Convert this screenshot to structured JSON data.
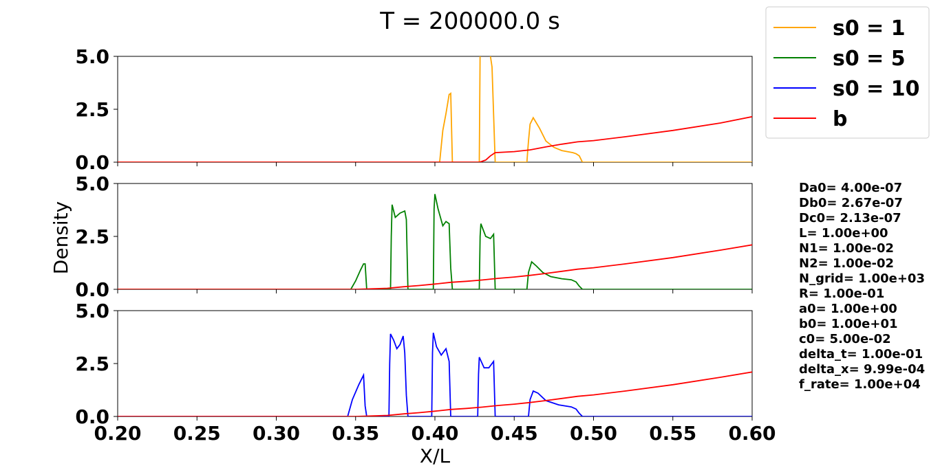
{
  "chart_data": {
    "type": "line",
    "title": "T = 200000.0 s",
    "xlabel": "X/L",
    "ylabel": "Density",
    "xlim": [
      0.2,
      0.6
    ],
    "xticks": [
      "0.20",
      "0.25",
      "0.30",
      "0.35",
      "0.40",
      "0.45",
      "0.50",
      "0.55",
      "0.60"
    ],
    "ylim": [
      0,
      5
    ],
    "yticks": [
      "0.0",
      "2.5",
      "5.0"
    ],
    "grid": false,
    "legend": {
      "placement": "top-right",
      "entries": [
        {
          "label": "s0 = 1",
          "color": "#ffa500"
        },
        {
          "label": "s0 = 5",
          "color": "#008000"
        },
        {
          "label": "s0 = 10",
          "color": "#0000ff"
        },
        {
          "label": "b",
          "color": "#ff0000"
        }
      ]
    },
    "b_curve": {
      "name": "b",
      "color": "#ff0000",
      "x": [
        0.2,
        0.3,
        0.35,
        0.37,
        0.38,
        0.39,
        0.4,
        0.41,
        0.42,
        0.43,
        0.44,
        0.45,
        0.46,
        0.47,
        0.48,
        0.49,
        0.5,
        0.52,
        0.55,
        0.58,
        0.6
      ],
      "y": [
        0,
        0,
        0,
        0.05,
        0.12,
        0.18,
        0.25,
        0.33,
        0.38,
        0.44,
        0.52,
        0.58,
        0.66,
        0.75,
        0.85,
        0.95,
        1.02,
        1.2,
        1.5,
        1.85,
        2.1
      ]
    },
    "subplots": [
      {
        "name": "s0 = 1",
        "color": "#ffa500",
        "x": [
          0.2,
          0.403,
          0.405,
          0.407,
          0.409,
          0.4095,
          0.41,
          0.411,
          0.428,
          0.4285,
          0.429,
          0.433,
          0.435,
          0.436,
          0.438,
          0.458,
          0.4585,
          0.459,
          0.46,
          0.462,
          0.466,
          0.47,
          0.475,
          0.48,
          0.487,
          0.489,
          0.491,
          0.493,
          0.6
        ],
        "y": [
          0,
          0,
          1.5,
          2.3,
          3.2,
          3.22,
          3.25,
          0,
          0,
          5.2,
          5.2,
          5.2,
          5.0,
          4.5,
          0,
          0,
          0.5,
          1.0,
          1.8,
          2.1,
          1.6,
          1.0,
          0.7,
          0.55,
          0.45,
          0.4,
          0.3,
          0,
          0
        ],
        "b_x": [
          0.2,
          0.428,
          0.429,
          0.432,
          0.435,
          0.438,
          0.45,
          0.46,
          0.47,
          0.48,
          0.49,
          0.5,
          0.52,
          0.55,
          0.58,
          0.6
        ],
        "b_y": [
          0,
          0,
          0.02,
          0.1,
          0.3,
          0.45,
          0.5,
          0.58,
          0.72,
          0.85,
          0.96,
          1.02,
          1.2,
          1.5,
          1.85,
          2.15
        ]
      },
      {
        "name": "s0 = 5",
        "color": "#008000",
        "x": [
          0.2,
          0.347,
          0.35,
          0.353,
          0.355,
          0.356,
          0.357,
          0.372,
          0.3725,
          0.373,
          0.375,
          0.378,
          0.381,
          0.382,
          0.383,
          0.399,
          0.3995,
          0.4,
          0.402,
          0.405,
          0.407,
          0.409,
          0.41,
          0.411,
          0.428,
          0.4285,
          0.429,
          0.432,
          0.435,
          0.437,
          0.438,
          0.458,
          0.459,
          0.461,
          0.464,
          0.468,
          0.473,
          0.48,
          0.486,
          0.489,
          0.491,
          0.493,
          0.6
        ],
        "y": [
          0,
          0,
          0.4,
          0.9,
          1.2,
          1.2,
          0,
          0,
          2.5,
          4.0,
          3.4,
          3.6,
          3.7,
          3.3,
          0,
          0,
          3.8,
          4.5,
          3.8,
          3.0,
          3.2,
          3.1,
          1.0,
          0,
          0,
          2.5,
          3.1,
          2.5,
          2.4,
          2.6,
          0,
          0,
          0.8,
          1.3,
          1.1,
          0.8,
          0.6,
          0.5,
          0.45,
          0.35,
          0.15,
          0,
          0
        ],
        "b_x": [
          0.2,
          0.3,
          0.35,
          0.37,
          0.38,
          0.39,
          0.4,
          0.41,
          0.42,
          0.43,
          0.44,
          0.45,
          0.46,
          0.47,
          0.48,
          0.49,
          0.5,
          0.52,
          0.55,
          0.58,
          0.6
        ],
        "b_y": [
          0,
          0,
          0,
          0.05,
          0.12,
          0.18,
          0.25,
          0.33,
          0.38,
          0.44,
          0.52,
          0.58,
          0.66,
          0.75,
          0.85,
          0.95,
          1.02,
          1.2,
          1.5,
          1.85,
          2.1
        ]
      },
      {
        "name": "s0 = 10",
        "color": "#0000ff",
        "x": [
          0.2,
          0.345,
          0.348,
          0.352,
          0.355,
          0.356,
          0.357,
          0.371,
          0.3715,
          0.372,
          0.374,
          0.376,
          0.378,
          0.38,
          0.381,
          0.382,
          0.383,
          0.398,
          0.3985,
          0.399,
          0.401,
          0.404,
          0.407,
          0.409,
          0.41,
          0.427,
          0.4275,
          0.428,
          0.431,
          0.434,
          0.437,
          0.438,
          0.459,
          0.46,
          0.462,
          0.465,
          0.47,
          0.478,
          0.486,
          0.489,
          0.491,
          0.493,
          0.6
        ],
        "y": [
          0,
          0,
          0.8,
          1.5,
          1.95,
          0.5,
          0,
          0,
          2.5,
          3.9,
          3.6,
          3.2,
          3.4,
          3.8,
          3.0,
          1.0,
          0,
          0,
          3.0,
          3.95,
          3.3,
          2.9,
          3.2,
          2.6,
          0,
          0,
          2.0,
          2.8,
          2.3,
          2.3,
          2.6,
          0,
          0,
          0.8,
          1.2,
          1.1,
          0.75,
          0.55,
          0.45,
          0.35,
          0.15,
          0,
          0
        ],
        "b_x": [
          0.2,
          0.3,
          0.35,
          0.37,
          0.38,
          0.39,
          0.4,
          0.41,
          0.42,
          0.43,
          0.44,
          0.45,
          0.46,
          0.47,
          0.48,
          0.49,
          0.5,
          0.52,
          0.55,
          0.58,
          0.6
        ],
        "b_y": [
          0,
          0,
          0,
          0.05,
          0.12,
          0.18,
          0.25,
          0.33,
          0.38,
          0.44,
          0.52,
          0.58,
          0.66,
          0.75,
          0.85,
          0.95,
          1.02,
          1.2,
          1.5,
          1.85,
          2.1
        ]
      }
    ],
    "parameters": [
      "Da0= 4.00e-07",
      "Db0= 2.67e-07",
      "Dc0= 2.13e-07",
      "L= 1.00e+00",
      "N1= 1.00e-02",
      "N2= 1.00e-02",
      "N_grid= 1.00e+03",
      "R= 1.00e-01",
      "a0= 1.00e+00",
      "b0= 1.00e+01",
      "c0= 5.00e-02",
      "delta_t= 1.00e-01",
      "delta_x= 9.99e-04",
      "f_rate= 1.00e+04"
    ]
  }
}
